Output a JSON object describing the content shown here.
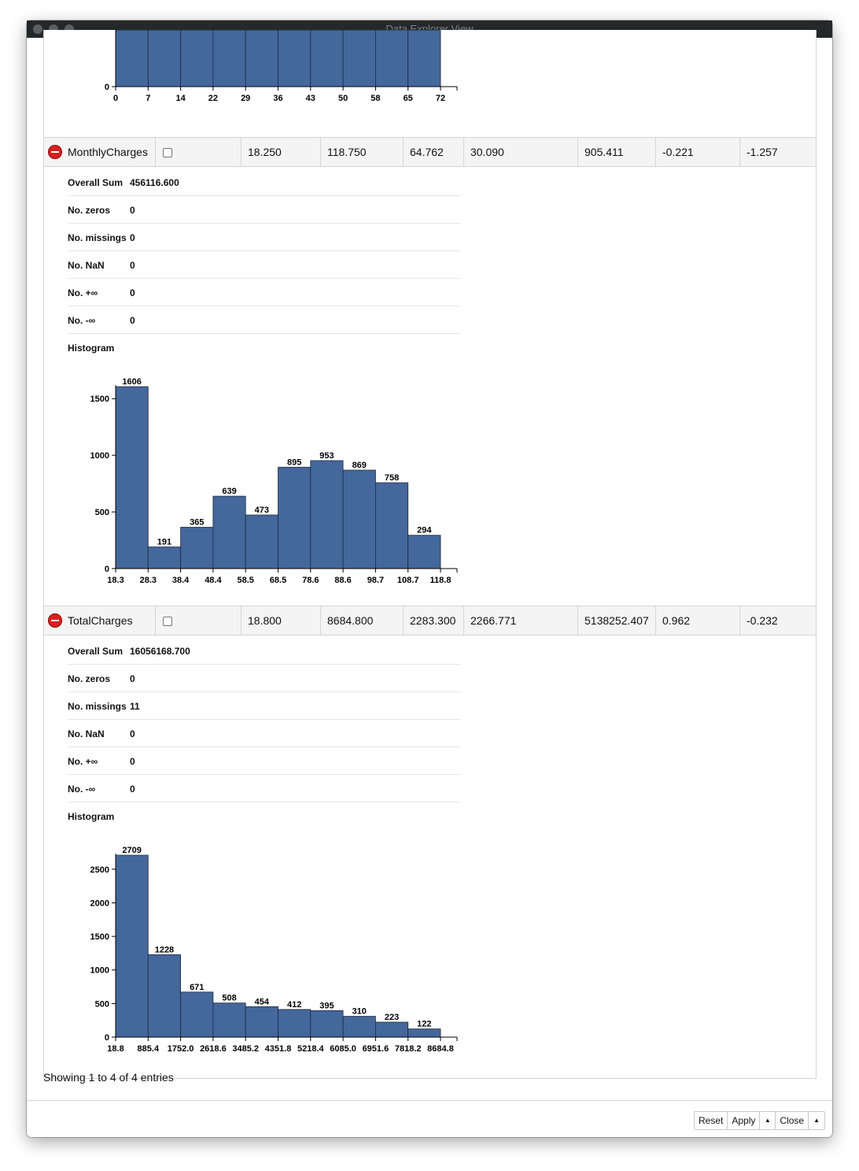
{
  "window": {
    "title": "Data Explorer View"
  },
  "chart_data": [
    {
      "type": "bar",
      "categories": [
        "0",
        "7",
        "14",
        "22",
        "29",
        "36",
        "43",
        "50",
        "58",
        "65",
        "72"
      ],
      "note_visible": "partial histogram from previous column, only lower portion and x tick labels visible",
      "ticks": [
        "0",
        "7",
        "14",
        "22",
        "29",
        "36",
        "43",
        "50",
        "58",
        "65",
        "72"
      ],
      "yticks": [
        "0"
      ]
    },
    {
      "type": "bar",
      "ticks": [
        "18.3",
        "28.3",
        "38.4",
        "48.4",
        "58.5",
        "68.5",
        "78.6",
        "88.6",
        "98.7",
        "108.7",
        "118.8"
      ],
      "values": [
        1606,
        191,
        365,
        639,
        473,
        895,
        953,
        869,
        758,
        294
      ],
      "labels": [
        "1606",
        "191",
        "365",
        "639",
        "473",
        "895",
        "953",
        "869",
        "758",
        "294"
      ],
      "yticks": [
        "0",
        "500",
        "1000",
        "1500"
      ],
      "ylim": [
        0,
        1606
      ]
    },
    {
      "type": "bar",
      "ticks": [
        "18.8",
        "885.4",
        "1752.0",
        "2618.6",
        "3485.2",
        "4351.8",
        "5218.4",
        "6085.0",
        "6951.6",
        "7818.2",
        "8684.8"
      ],
      "values": [
        2709,
        1228,
        671,
        508,
        454,
        412,
        395,
        310,
        223,
        122
      ],
      "labels": [
        "2709",
        "1228",
        "671",
        "508",
        "454",
        "412",
        "395",
        "310",
        "223",
        "122"
      ],
      "yticks": [
        "0",
        "500",
        "1000",
        "1500",
        "2000",
        "2500"
      ],
      "ylim": [
        0,
        2709
      ]
    }
  ],
  "columns": [
    {
      "name": "MonthlyCharges",
      "values": [
        "18.250",
        "118.750",
        "64.762",
        "30.090",
        "905.411",
        "-0.221",
        "-1.257"
      ],
      "stats": [
        {
          "label": "Overall Sum",
          "value": "456116.600"
        },
        {
          "label": "No. zeros",
          "value": "0"
        },
        {
          "label": "No. missings",
          "value": "0"
        },
        {
          "label": "No. NaN",
          "value": "0"
        },
        {
          "label": "No. +∞",
          "value": "0"
        },
        {
          "label": "No. -∞",
          "value": "0"
        }
      ],
      "histogram_label": "Histogram"
    },
    {
      "name": "TotalCharges",
      "values": [
        "18.800",
        "8684.800",
        "2283.300",
        "2266.771",
        "5138252.407",
        "0.962",
        "-0.232"
      ],
      "stats": [
        {
          "label": "Overall Sum",
          "value": "16056168.700"
        },
        {
          "label": "No. zeros",
          "value": "0"
        },
        {
          "label": "No. missings",
          "value": "11"
        },
        {
          "label": "No. NaN",
          "value": "0"
        },
        {
          "label": "No. +∞",
          "value": "0"
        },
        {
          "label": "No. -∞",
          "value": "0"
        }
      ],
      "histogram_label": "Histogram"
    }
  ],
  "footer": {
    "entries_text": "Showing 1 to 4 of 4 entries"
  },
  "buttons": {
    "reset": "Reset",
    "apply": "Apply",
    "close": "Close",
    "arrow": "▲"
  },
  "colors": {
    "bar": "#44679c",
    "bar_stroke": "#1e2a3d",
    "minus_button": "#d81f1f"
  }
}
